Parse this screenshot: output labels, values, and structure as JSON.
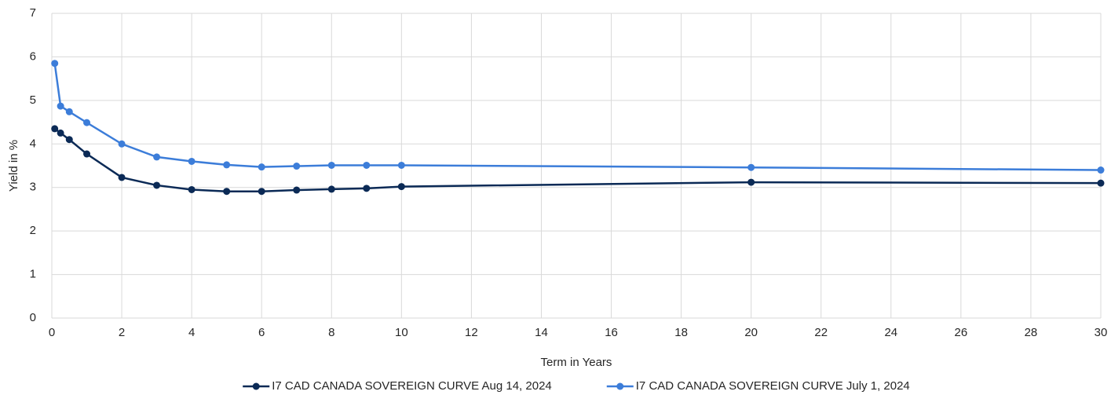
{
  "chart_data": {
    "type": "line",
    "x_label": "Term in Years",
    "y_label": "Yield in %",
    "x": [
      0.083,
      0.25,
      0.5,
      1,
      2,
      3,
      4,
      5,
      6,
      7,
      8,
      9,
      10,
      20,
      30
    ],
    "series": [
      {
        "name": "I7 CAD CANADA SOVEREIGN CURVE Aug 14, 2024",
        "color": "#0b2a56",
        "values": [
          4.35,
          4.25,
          4.1,
          3.77,
          3.23,
          3.05,
          2.95,
          2.91,
          2.91,
          2.94,
          2.96,
          2.98,
          3.02,
          3.12,
          3.1
        ]
      },
      {
        "name": "I7 CAD CANADA SOVEREIGN CURVE July 1, 2024",
        "color": "#3c7dd9",
        "values": [
          5.85,
          4.87,
          4.74,
          4.49,
          4.0,
          3.7,
          3.6,
          3.52,
          3.47,
          3.49,
          3.51,
          3.51,
          3.51,
          3.46,
          3.4
        ]
      }
    ],
    "xlim": [
      0,
      30
    ],
    "xticks": [
      0,
      2,
      4,
      6,
      8,
      10,
      12,
      14,
      16,
      18,
      20,
      22,
      24,
      26,
      28,
      30
    ],
    "ylim": [
      0,
      7
    ],
    "yticks": [
      0,
      1,
      2,
      3,
      4,
      5,
      6,
      7
    ],
    "grid": true,
    "legend": "bottom"
  }
}
